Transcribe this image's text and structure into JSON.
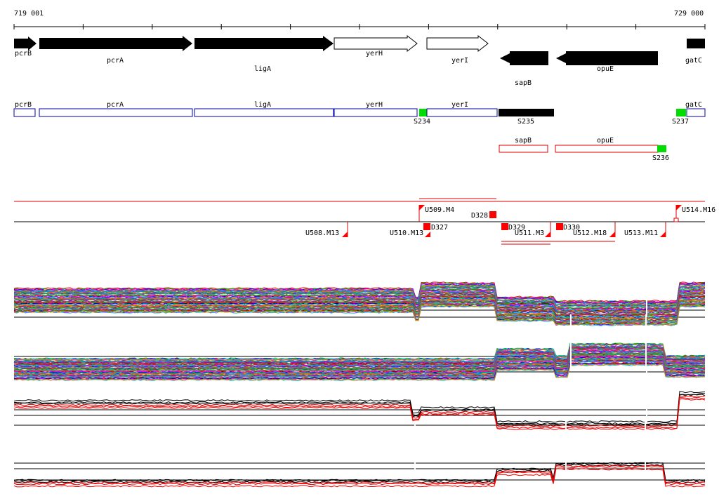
{
  "coords": {
    "start": "719 001",
    "end": "729 000"
  },
  "colors": {
    "gene_fill": "#000000",
    "gene_open": "#ffffff",
    "segment_blue": "#0000aa",
    "segment_green": "#00dd00",
    "segment_red": "#dd0000",
    "marker_red": "#ff0000",
    "trace_red": "#ee0000"
  },
  "genes_forward": [
    {
      "id": "gene-pcrB",
      "label": "pcrB",
      "filled": true
    },
    {
      "id": "gene-pcrA",
      "label": "pcrA",
      "filled": true
    },
    {
      "id": "gene-ligA",
      "label": "ligA",
      "filled": true
    },
    {
      "id": "gene-yerH",
      "label": "yerH",
      "filled": false
    },
    {
      "id": "gene-yerI",
      "label": "yerI",
      "filled": false
    },
    {
      "id": "gene-gatC",
      "label": "gatC",
      "filled": true
    }
  ],
  "genes_reverse": [
    {
      "id": "gene-sapB",
      "label": "sapB",
      "filled": true
    },
    {
      "id": "gene-opuE",
      "label": "opuE",
      "filled": true
    }
  ],
  "segments_forward": [
    {
      "label": "pcrB"
    },
    {
      "label": "pcrA"
    },
    {
      "label": "ligA"
    },
    {
      "label": "yerH"
    },
    {
      "label": "yerI"
    },
    {
      "label": "gatC"
    }
  ],
  "sites_forward": [
    "S234",
    "S235",
    "S237"
  ],
  "segments_reverse": [
    {
      "label": "sapB"
    },
    {
      "label": "opuE"
    }
  ],
  "sites_reverse": [
    "S236"
  ],
  "transcripts_upper": [
    "U509.M4",
    "U514.M16"
  ],
  "transcripts_lower": [
    "U508.M13",
    "U510.M13",
    "U511.M3",
    "U512.M18",
    "U513.M11"
  ],
  "downshifts": [
    "D327",
    "D328",
    "D329",
    "D330"
  ],
  "panels": [
    "expression-panel-1",
    "expression-panel-2",
    "expression-panel-3",
    "expression-panel-4"
  ]
}
